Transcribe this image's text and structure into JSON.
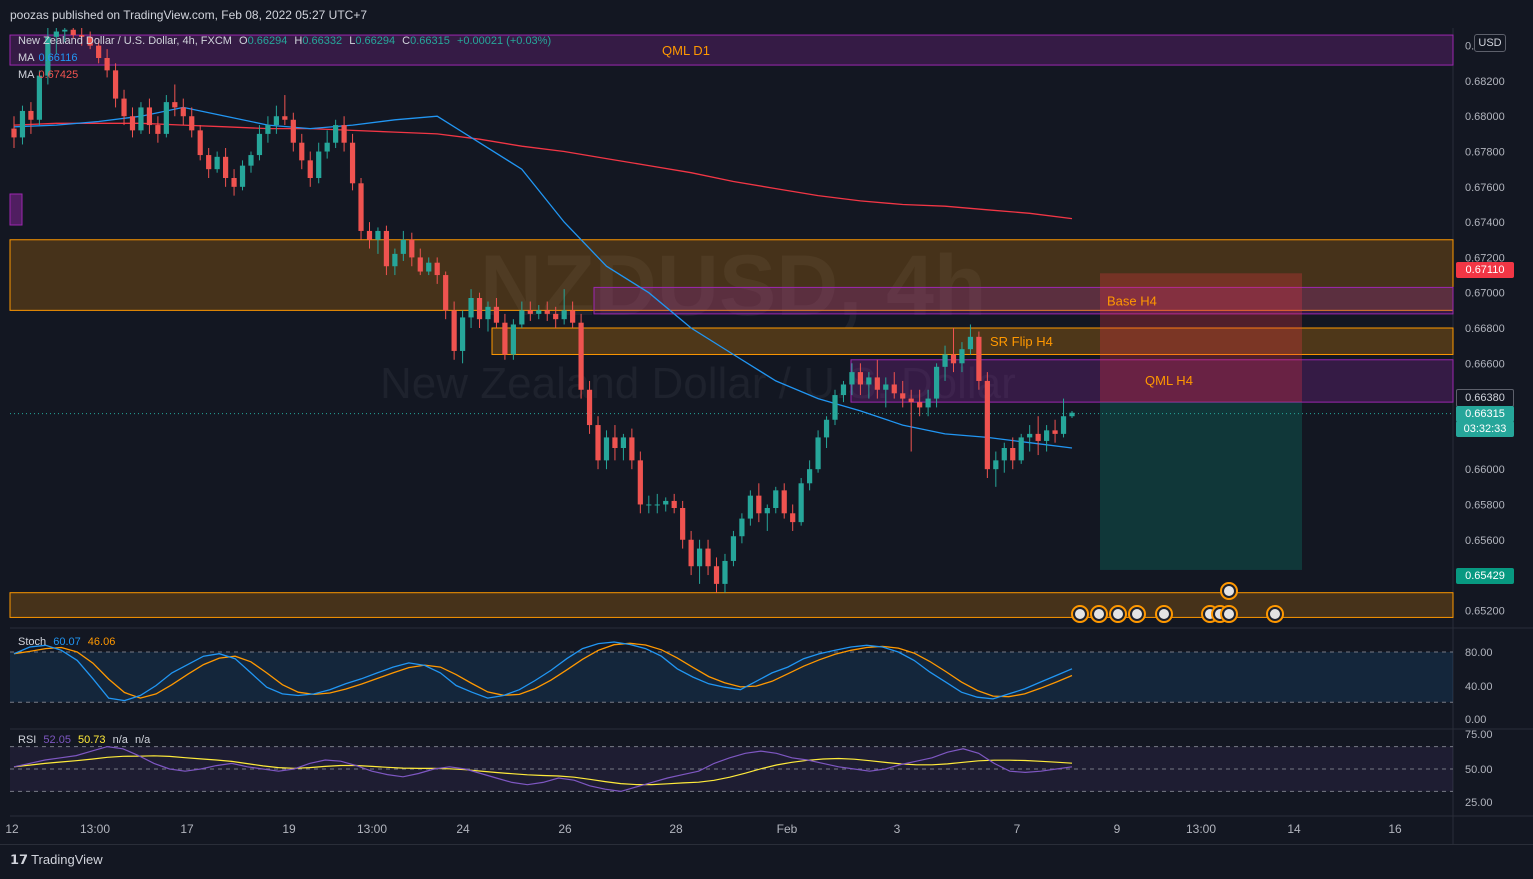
{
  "header": {
    "publisher": "poozas published on TradingView.com, Feb 08, 2022 05:27 UTC+7"
  },
  "legend": {
    "symbol": "New Zealand Dollar / U.S. Dollar, 4h, FXCM",
    "o_label": "O",
    "o": "0.66294",
    "h_label": "H",
    "h": "0.66332",
    "l_label": "L",
    "l": "0.66294",
    "c_label": "C",
    "c": "0.66315",
    "change": "+0.00021 (+0.03%)",
    "ma1_label": "MA",
    "ma1_value": "0.66116",
    "ma2_label": "MA",
    "ma2_value": "0.67425"
  },
  "watermark": {
    "ticker": "NZDUSD, 4h",
    "name": "New Zealand Dollar / U.S. Dollar"
  },
  "zones": {
    "qml_d1": "QML D1",
    "base_h4": "Base H4",
    "sr_flip_h4": "SR Flip H4",
    "qml_h4": "QML H4"
  },
  "price_axis": {
    "currency": "USD",
    "ticks": [
      "0.68400",
      "0.68200",
      "0.68000",
      "0.67800",
      "0.67600",
      "0.67400",
      "0.67200",
      "0.67000",
      "0.66800",
      "0.66600",
      "0.66000",
      "0.65800",
      "0.65600",
      "0.65200"
    ],
    "tag_stop": "0.67110",
    "tag_entry": "0.66380",
    "tag_last": "0.66315",
    "tag_countdown": "03:32:33",
    "tag_target": "0.65429"
  },
  "stoch": {
    "label": "Stoch",
    "k": "60.07",
    "d": "46.06",
    "ticks": [
      "80.00",
      "40.00",
      "0.00"
    ]
  },
  "rsi": {
    "label": "RSI",
    "value": "52.05",
    "ma": "50.73",
    "na1": "n/a",
    "na2": "n/a",
    "ticks": [
      "75.00",
      "50.00",
      "25.00"
    ]
  },
  "time_axis": {
    "labels": [
      "12",
      "13:00",
      "17",
      "19",
      "13:00",
      "24",
      "26",
      "28",
      "Feb",
      "3",
      "7",
      "9",
      "13:00",
      "14",
      "16"
    ]
  },
  "footer": {
    "brand": "TradingView"
  },
  "colors": {
    "up": "#26a69a",
    "down": "#ef5350",
    "ma_fast": "#2196f3",
    "ma_slow": "#f23645",
    "zone_orange": "#ff9800",
    "zone_purple": "#9c27b0"
  },
  "chart_data": {
    "type": "candlestick",
    "symbol": "NZDUSD",
    "timeframe": "4h",
    "ylim": [
      0.651,
      0.685
    ],
    "candles": [
      [
        0.6793,
        0.68,
        0.6782,
        0.6788
      ],
      [
        0.6788,
        0.6806,
        0.6784,
        0.6803
      ],
      [
        0.6803,
        0.6808,
        0.679,
        0.6798
      ],
      [
        0.6798,
        0.6826,
        0.6795,
        0.6823
      ],
      [
        0.6823,
        0.685,
        0.6818,
        0.6845
      ],
      [
        0.6845,
        0.6852,
        0.6835,
        0.6848
      ],
      [
        0.6848,
        0.6852,
        0.6842,
        0.6849
      ],
      [
        0.6849,
        0.6852,
        0.6844,
        0.6846
      ],
      [
        0.6846,
        0.685,
        0.684,
        0.6845
      ],
      [
        0.6845,
        0.6848,
        0.6838,
        0.684
      ],
      [
        0.684,
        0.6843,
        0.683,
        0.6833
      ],
      [
        0.6833,
        0.6838,
        0.6822,
        0.6826
      ],
      [
        0.6826,
        0.683,
        0.6805,
        0.681
      ],
      [
        0.681,
        0.6815,
        0.6795,
        0.68
      ],
      [
        0.68,
        0.6805,
        0.6788,
        0.6792
      ],
      [
        0.6792,
        0.6808,
        0.679,
        0.6805
      ],
      [
        0.6805,
        0.681,
        0.679,
        0.6795
      ],
      [
        0.6795,
        0.68,
        0.6785,
        0.679
      ],
      [
        0.679,
        0.6812,
        0.6788,
        0.6808
      ],
      [
        0.6808,
        0.6818,
        0.68,
        0.6805
      ],
      [
        0.6805,
        0.681,
        0.6795,
        0.68
      ],
      [
        0.68,
        0.6805,
        0.6788,
        0.6792
      ],
      [
        0.6792,
        0.6795,
        0.6775,
        0.6778
      ],
      [
        0.6778,
        0.6782,
        0.6765,
        0.677
      ],
      [
        0.677,
        0.678,
        0.6768,
        0.6777
      ],
      [
        0.6777,
        0.6782,
        0.676,
        0.6765
      ],
      [
        0.6765,
        0.677,
        0.6755,
        0.676
      ],
      [
        0.676,
        0.6775,
        0.6758,
        0.6772
      ],
      [
        0.6772,
        0.678,
        0.6768,
        0.6778
      ],
      [
        0.6778,
        0.6795,
        0.6775,
        0.679
      ],
      [
        0.679,
        0.68,
        0.6785,
        0.6795
      ],
      [
        0.6795,
        0.6806,
        0.679,
        0.68
      ],
      [
        0.68,
        0.6812,
        0.6795,
        0.6798
      ],
      [
        0.6798,
        0.6802,
        0.678,
        0.6785
      ],
      [
        0.6785,
        0.679,
        0.677,
        0.6775
      ],
      [
        0.6775,
        0.678,
        0.676,
        0.6765
      ],
      [
        0.6765,
        0.6785,
        0.6762,
        0.678
      ],
      [
        0.678,
        0.6792,
        0.6776,
        0.6785
      ],
      [
        0.6785,
        0.6798,
        0.6782,
        0.6795
      ],
      [
        0.6795,
        0.68,
        0.678,
        0.6785
      ],
      [
        0.6785,
        0.679,
        0.6758,
        0.6762
      ],
      [
        0.6762,
        0.6765,
        0.673,
        0.6735
      ],
      [
        0.6735,
        0.674,
        0.6725,
        0.673
      ],
      [
        0.673,
        0.6737,
        0.6722,
        0.6735
      ],
      [
        0.6735,
        0.6738,
        0.671,
        0.6715
      ],
      [
        0.6715,
        0.6725,
        0.671,
        0.6722
      ],
      [
        0.6722,
        0.6735,
        0.6718,
        0.673
      ],
      [
        0.673,
        0.6734,
        0.6715,
        0.672
      ],
      [
        0.672,
        0.6725,
        0.671,
        0.6712
      ],
      [
        0.6712,
        0.672,
        0.671,
        0.6717
      ],
      [
        0.6717,
        0.672,
        0.6705,
        0.671
      ],
      [
        0.671,
        0.6712,
        0.6685,
        0.669
      ],
      [
        0.669,
        0.6695,
        0.6662,
        0.6667
      ],
      [
        0.6667,
        0.669,
        0.666,
        0.6686
      ],
      [
        0.6686,
        0.6702,
        0.668,
        0.6697
      ],
      [
        0.6697,
        0.67,
        0.668,
        0.6685
      ],
      [
        0.6685,
        0.6695,
        0.6678,
        0.6692
      ],
      [
        0.6692,
        0.6697,
        0.668,
        0.6683
      ],
      [
        0.6683,
        0.6688,
        0.6662,
        0.6665
      ],
      [
        0.6665,
        0.6685,
        0.6662,
        0.6682
      ],
      [
        0.6682,
        0.6695,
        0.668,
        0.669
      ],
      [
        0.669,
        0.6695,
        0.6684,
        0.6688
      ],
      [
        0.6688,
        0.6693,
        0.6685,
        0.669
      ],
      [
        0.669,
        0.6695,
        0.6684,
        0.6688
      ],
      [
        0.6688,
        0.6692,
        0.668,
        0.6685
      ],
      [
        0.6685,
        0.6702,
        0.6682,
        0.669
      ],
      [
        0.669,
        0.6695,
        0.668,
        0.6683
      ],
      [
        0.6683,
        0.6688,
        0.664,
        0.6645
      ],
      [
        0.6645,
        0.665,
        0.662,
        0.6625
      ],
      [
        0.6625,
        0.663,
        0.66,
        0.6605
      ],
      [
        0.6605,
        0.6622,
        0.66,
        0.6618
      ],
      [
        0.6618,
        0.6625,
        0.6605,
        0.6612
      ],
      [
        0.6612,
        0.662,
        0.6605,
        0.6618
      ],
      [
        0.6618,
        0.6623,
        0.66,
        0.6605
      ],
      [
        0.6605,
        0.661,
        0.6575,
        0.658
      ],
      [
        0.658,
        0.6585,
        0.6575,
        0.658
      ],
      [
        0.658,
        0.6586,
        0.6575,
        0.658
      ],
      [
        0.658,
        0.6584,
        0.6576,
        0.6582
      ],
      [
        0.6582,
        0.6586,
        0.6575,
        0.6578
      ],
      [
        0.6578,
        0.6582,
        0.6555,
        0.656
      ],
      [
        0.656,
        0.6565,
        0.654,
        0.6545
      ],
      [
        0.6545,
        0.656,
        0.6535,
        0.6555
      ],
      [
        0.6555,
        0.656,
        0.654,
        0.6545
      ],
      [
        0.6545,
        0.655,
        0.653,
        0.6535
      ],
      [
        0.6535,
        0.6552,
        0.653,
        0.6548
      ],
      [
        0.6548,
        0.6565,
        0.6545,
        0.6562
      ],
      [
        0.6562,
        0.6575,
        0.6558,
        0.6572
      ],
      [
        0.6572,
        0.6588,
        0.6568,
        0.6585
      ],
      [
        0.6585,
        0.6592,
        0.657,
        0.6575
      ],
      [
        0.6575,
        0.658,
        0.6565,
        0.6578
      ],
      [
        0.6578,
        0.659,
        0.6575,
        0.6588
      ],
      [
        0.6588,
        0.6592,
        0.6572,
        0.6575
      ],
      [
        0.6575,
        0.658,
        0.6565,
        0.657
      ],
      [
        0.657,
        0.6595,
        0.6568,
        0.6592
      ],
      [
        0.6592,
        0.6605,
        0.6588,
        0.66
      ],
      [
        0.66,
        0.6622,
        0.6598,
        0.6618
      ],
      [
        0.6618,
        0.663,
        0.6612,
        0.6628
      ],
      [
        0.6628,
        0.6645,
        0.6625,
        0.6642
      ],
      [
        0.6642,
        0.665,
        0.6638,
        0.6648
      ],
      [
        0.6648,
        0.666,
        0.6642,
        0.6655
      ],
      [
        0.6655,
        0.666,
        0.6642,
        0.6648
      ],
      [
        0.6648,
        0.6655,
        0.664,
        0.6652
      ],
      [
        0.6652,
        0.6662,
        0.664,
        0.6645
      ],
      [
        0.6645,
        0.6652,
        0.6635,
        0.6648
      ],
      [
        0.6648,
        0.6655,
        0.664,
        0.6643
      ],
      [
        0.6643,
        0.665,
        0.6635,
        0.664
      ],
      [
        0.664,
        0.6645,
        0.661,
        0.6638
      ],
      [
        0.6638,
        0.6645,
        0.663,
        0.6635
      ],
      [
        0.6635,
        0.6645,
        0.663,
        0.664
      ],
      [
        0.664,
        0.666,
        0.6635,
        0.6658
      ],
      [
        0.6658,
        0.667,
        0.665,
        0.6665
      ],
      [
        0.6665,
        0.668,
        0.6655,
        0.666
      ],
      [
        0.666,
        0.6672,
        0.6655,
        0.6668
      ],
      [
        0.6668,
        0.6682,
        0.6665,
        0.6675
      ],
      [
        0.6675,
        0.6678,
        0.6645,
        0.665
      ],
      [
        0.665,
        0.6655,
        0.6595,
        0.66
      ],
      [
        0.66,
        0.661,
        0.659,
        0.6605
      ],
      [
        0.6605,
        0.6615,
        0.6598,
        0.6612
      ],
      [
        0.6612,
        0.6618,
        0.66,
        0.6605
      ],
      [
        0.6605,
        0.662,
        0.6603,
        0.6618
      ],
      [
        0.6618,
        0.6625,
        0.661,
        0.662
      ],
      [
        0.662,
        0.663,
        0.6608,
        0.6616
      ],
      [
        0.6616,
        0.6625,
        0.661,
        0.6622
      ],
      [
        0.6622,
        0.6628,
        0.6615,
        0.662
      ],
      [
        0.662,
        0.664,
        0.6618,
        0.663
      ],
      [
        0.663,
        0.6633,
        0.6629,
        0.6632
      ]
    ],
    "ma_fast": {
      "label": "MA",
      "value": 0.66116,
      "points": [
        0.6794,
        0.6795,
        0.6797,
        0.68,
        0.6805,
        0.68,
        0.6795,
        0.6793,
        0.6795,
        0.6798,
        0.68,
        0.6785,
        0.677,
        0.674,
        0.6715,
        0.67,
        0.668,
        0.6665,
        0.665,
        0.664,
        0.6633,
        0.6625,
        0.662,
        0.6618,
        0.6615,
        0.6612
      ]
    },
    "ma_slow": {
      "label": "MA",
      "value": 0.67425,
      "points": [
        0.6795,
        0.6796,
        0.6796,
        0.6796,
        0.6795,
        0.6794,
        0.6793,
        0.6793,
        0.6792,
        0.6791,
        0.679,
        0.6787,
        0.6783,
        0.678,
        0.6776,
        0.6772,
        0.6768,
        0.6763,
        0.6759,
        0.6755,
        0.6752,
        0.675,
        0.6749,
        0.6747,
        0.6745,
        0.6742
      ]
    },
    "zones": [
      {
        "label": "QML D1",
        "from": 0.6829,
        "to": 0.6846
      },
      {
        "label": "",
        "from": 0.669,
        "to": 0.673
      },
      {
        "label": "Base H4",
        "from": 0.6688,
        "to": 0.6703
      },
      {
        "label": "SR Flip H4",
        "from": 0.6665,
        "to": 0.668
      },
      {
        "label": "QML H4",
        "from": 0.6638,
        "to": 0.6662
      },
      {
        "label": "",
        "from": 0.6516,
        "to": 0.653
      }
    ],
    "position": {
      "entry": 0.6638,
      "stop": 0.6711,
      "target": 0.65429
    },
    "stoch": {
      "k": 60.07,
      "d": 46.06,
      "levels": [
        80,
        20
      ],
      "k_points": [
        78,
        86,
        88,
        82,
        70,
        48,
        25,
        22,
        28,
        40,
        55,
        65,
        75,
        78,
        72,
        55,
        38,
        30,
        28,
        30,
        35,
        42,
        48,
        55,
        62,
        67,
        64,
        55,
        40,
        32,
        25,
        28,
        35,
        46,
        58,
        72,
        84,
        90,
        92,
        89,
        84,
        75,
        60,
        50,
        42,
        38,
        35,
        45,
        55,
        62,
        72,
        78,
        82,
        86,
        88,
        86,
        80,
        70,
        56,
        44,
        32,
        26,
        24,
        30,
        36,
        44,
        52,
        60
      ]
    },
    "rsi": {
      "value": 52.05,
      "ma": 50.73,
      "levels": [
        70,
        30
      ],
      "points": [
        52,
        55,
        58,
        60,
        62,
        66,
        70,
        68,
        62,
        55,
        50,
        48,
        50,
        53,
        55,
        52,
        50,
        48,
        50,
        55,
        58,
        57,
        53,
        48,
        45,
        43,
        46,
        50,
        52,
        50,
        46,
        42,
        38,
        36,
        38,
        42,
        40,
        35,
        32,
        30,
        34,
        38,
        42,
        45,
        48,
        55,
        60,
        64,
        66,
        64,
        60,
        58,
        55,
        52,
        50,
        48,
        50,
        54,
        57,
        60,
        65,
        68,
        64,
        55,
        48,
        47,
        48,
        50,
        52
      ]
    }
  }
}
